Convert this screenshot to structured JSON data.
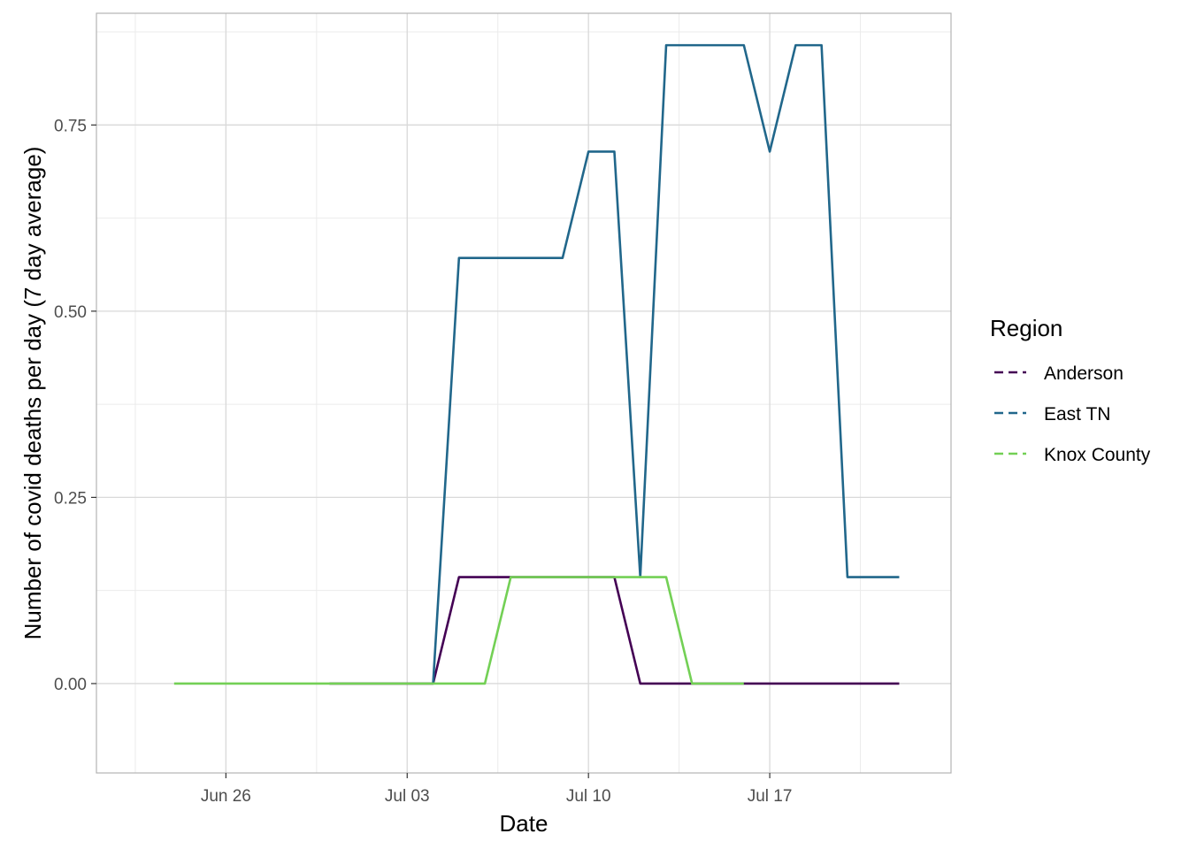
{
  "chart_data": {
    "type": "line",
    "xlabel": "Date",
    "ylabel": "Number of covid deaths per day (7 day average)",
    "xlim": [
      "2020-06-21",
      "2020-07-24"
    ],
    "ylim": [
      -0.12,
      0.9
    ],
    "x_ticks": [
      {
        "date": "2020-06-26",
        "label": "Jun 26"
      },
      {
        "date": "2020-07-03",
        "label": "Jul 03"
      },
      {
        "date": "2020-07-10",
        "label": "Jul 10"
      },
      {
        "date": "2020-07-17",
        "label": "Jul 17"
      }
    ],
    "y_ticks": [
      {
        "value": 0.0,
        "label": "0.00"
      },
      {
        "value": 0.25,
        "label": "0.25"
      },
      {
        "value": 0.5,
        "label": "0.50"
      },
      {
        "value": 0.75,
        "label": "0.75"
      }
    ],
    "grid": true,
    "legend": {
      "title": "Region",
      "position": "right"
    },
    "series": [
      {
        "name": "Anderson",
        "color": "#440154",
        "points": [
          [
            "2020-06-30",
            0
          ],
          [
            "2020-07-01",
            0
          ],
          [
            "2020-07-02",
            0
          ],
          [
            "2020-07-03",
            0
          ],
          [
            "2020-07-04",
            0
          ],
          [
            "2020-07-05",
            0.1429
          ],
          [
            "2020-07-06",
            0.1429
          ],
          [
            "2020-07-07",
            0.1429
          ],
          [
            "2020-07-08",
            0.1429
          ],
          [
            "2020-07-09",
            0.1429
          ],
          [
            "2020-07-10",
            0.1429
          ],
          [
            "2020-07-11",
            0.1429
          ],
          [
            "2020-07-12",
            0
          ],
          [
            "2020-07-13",
            0
          ],
          [
            "2020-07-14",
            0
          ],
          [
            "2020-07-15",
            0
          ],
          [
            "2020-07-16",
            0
          ],
          [
            "2020-07-17",
            0
          ],
          [
            "2020-07-18",
            0
          ],
          [
            "2020-07-19",
            0
          ],
          [
            "2020-07-20",
            0
          ],
          [
            "2020-07-21",
            0
          ],
          [
            "2020-07-22",
            0
          ]
        ]
      },
      {
        "name": "East TN",
        "color": "#21678B",
        "points": [
          [
            "2020-07-04",
            0
          ],
          [
            "2020-07-05",
            0.5714
          ],
          [
            "2020-07-06",
            0.5714
          ],
          [
            "2020-07-07",
            0.5714
          ],
          [
            "2020-07-08",
            0.5714
          ],
          [
            "2020-07-09",
            0.5714
          ],
          [
            "2020-07-10",
            0.7143
          ],
          [
            "2020-07-11",
            0.7143
          ],
          [
            "2020-07-12",
            0.1429
          ],
          [
            "2020-07-13",
            0.8571
          ],
          [
            "2020-07-14",
            0.8571
          ],
          [
            "2020-07-15",
            0.8571
          ],
          [
            "2020-07-16",
            0.8571
          ],
          [
            "2020-07-17",
            0.7143
          ],
          [
            "2020-07-18",
            0.8571
          ],
          [
            "2020-07-19",
            0.8571
          ],
          [
            "2020-07-20",
            0.1429
          ],
          [
            "2020-07-21",
            0.1429
          ],
          [
            "2020-07-22",
            0.1429
          ]
        ]
      },
      {
        "name": "Knox County",
        "color": "#73D055",
        "points": [
          [
            "2020-06-24",
            0
          ],
          [
            "2020-06-25",
            0
          ],
          [
            "2020-06-26",
            0
          ],
          [
            "2020-06-27",
            0
          ],
          [
            "2020-06-28",
            0
          ],
          [
            "2020-06-29",
            0
          ],
          [
            "2020-06-30",
            0
          ],
          [
            "2020-07-01",
            0
          ],
          [
            "2020-07-02",
            0
          ],
          [
            "2020-07-03",
            0
          ],
          [
            "2020-07-04",
            0
          ],
          [
            "2020-07-05",
            0
          ],
          [
            "2020-07-06",
            0
          ],
          [
            "2020-07-07",
            0.1429
          ],
          [
            "2020-07-08",
            0.1429
          ],
          [
            "2020-07-09",
            0.1429
          ],
          [
            "2020-07-10",
            0.1429
          ],
          [
            "2020-07-11",
            0.1429
          ],
          [
            "2020-07-12",
            0.1429
          ],
          [
            "2020-07-13",
            0.1429
          ],
          [
            "2020-07-14",
            0
          ],
          [
            "2020-07-15",
            0
          ],
          [
            "2020-07-16",
            0
          ]
        ]
      }
    ]
  }
}
